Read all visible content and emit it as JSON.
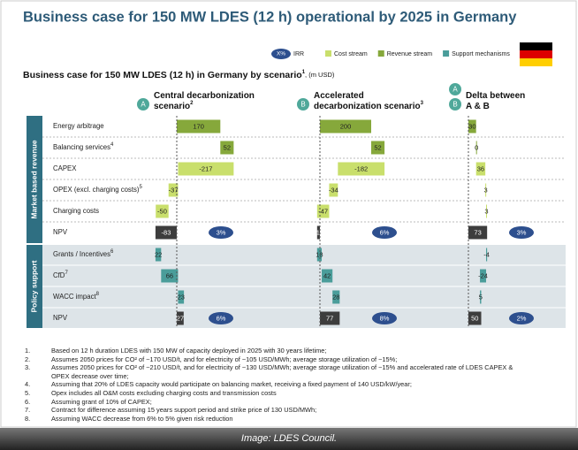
{
  "title": "Business case for 150 MW LDES (12 h) operational by 2025 in Germany",
  "legend": {
    "irr_symbol": "X%",
    "irr_label": "IRR",
    "items": [
      {
        "label": "Cost stream",
        "color": "#c9df6c"
      },
      {
        "label": "Revenue stream",
        "color": "#86a83b"
      },
      {
        "label": "Support mechanisms",
        "color": "#4a9d9a"
      }
    ]
  },
  "subtitle": {
    "text": "Business case for 150 MW LDES (12 h) in Germany by scenario",
    "note": "1",
    "unit": ", (m USD)"
  },
  "total_color": "#3d3d3d",
  "irr_color": "#2d4f8e",
  "scenarios": [
    {
      "badges": [
        "A"
      ],
      "lines": [
        "Central decarbonization",
        "scenario"
      ],
      "note": "2"
    },
    {
      "badges": [
        "B"
      ],
      "lines": [
        "Accelerated",
        "decarbonization scenario"
      ],
      "note": "3"
    },
    {
      "badges": [
        "A",
        "B"
      ],
      "lines": [
        "Delta between",
        "A & B"
      ]
    }
  ],
  "sections": [
    {
      "label": "Market based revenue",
      "rows": [
        {
          "label": "Energy arbitrage",
          "kind": "revenue",
          "values": [
            170,
            200,
            30
          ]
        },
        {
          "label": "Balancing services",
          "note": "4",
          "kind": "revenue",
          "values": [
            52,
            52,
            0
          ]
        },
        {
          "label": "CAPEX",
          "kind": "cost",
          "values": [
            -217,
            -182,
            36
          ]
        },
        {
          "label": "OPEX (excl. charging costs)",
          "note": "5",
          "kind": "cost",
          "values": [
            -37,
            -34,
            3
          ]
        },
        {
          "label": "Charging costs",
          "kind": "cost",
          "values": [
            -50,
            -47,
            3
          ]
        },
        {
          "label": "NPV",
          "kind": "total",
          "values": [
            -83,
            -11,
            73
          ],
          "irr": [
            "3%",
            "6%",
            "3%"
          ]
        }
      ]
    },
    {
      "label": "Policy support",
      "rows": [
        {
          "label": "Grants / Incentives",
          "note": "6",
          "kind": "support",
          "values": [
            22,
            18,
            -4
          ]
        },
        {
          "label": "CfD",
          "note": "7",
          "kind": "support",
          "values": [
            66,
            42,
            -24
          ]
        },
        {
          "label": "WACC impact",
          "note": "8",
          "kind": "support",
          "values": [
            23,
            28,
            5
          ]
        },
        {
          "label": "NPV",
          "kind": "total",
          "values": [
            27,
            77,
            50
          ],
          "irr": [
            "6%",
            "8%",
            "2%"
          ]
        }
      ]
    }
  ],
  "footnotes": [
    {
      "number": "1.",
      "text": "Based on 12 h duration LDES with 150 MW of capacity deployed in 2025 with 30 years lifetime;"
    },
    {
      "number": "2.",
      "text": "Assumes 2050 prices for CO² of ~170 USD/t, and for electricity of ~105 USD/MWh; average storage utilization of ~15%;"
    },
    {
      "number": "3.",
      "text": "Assumes 2050 prices for CO² of ~210 USD/t, and for electricity of ~130 USD/MWh; average storage utilization of ~15% and accelerated rate of LDES CAPEX & OPEX decrease over time;"
    },
    {
      "number": "4.",
      "text": "Assuming that 20% of LDES capacity would participate on balancing market, receiving a fixed payment of 140 USD/kW/year;"
    },
    {
      "number": "5.",
      "text": "Opex includes all O&M costs excluding charging costs and transmission costs"
    },
    {
      "number": "6.",
      "text": "Assuming grant of 10% of CAPEX;"
    },
    {
      "number": "7.",
      "text": "Contract for difference assuming 15 years support period and strike price of 130 USD/MWh;"
    },
    {
      "number": "8.",
      "text": "Assuming WACC decrease from 6% to 5% given risk reduction"
    }
  ],
  "credit": "Image: LDES Council."
}
